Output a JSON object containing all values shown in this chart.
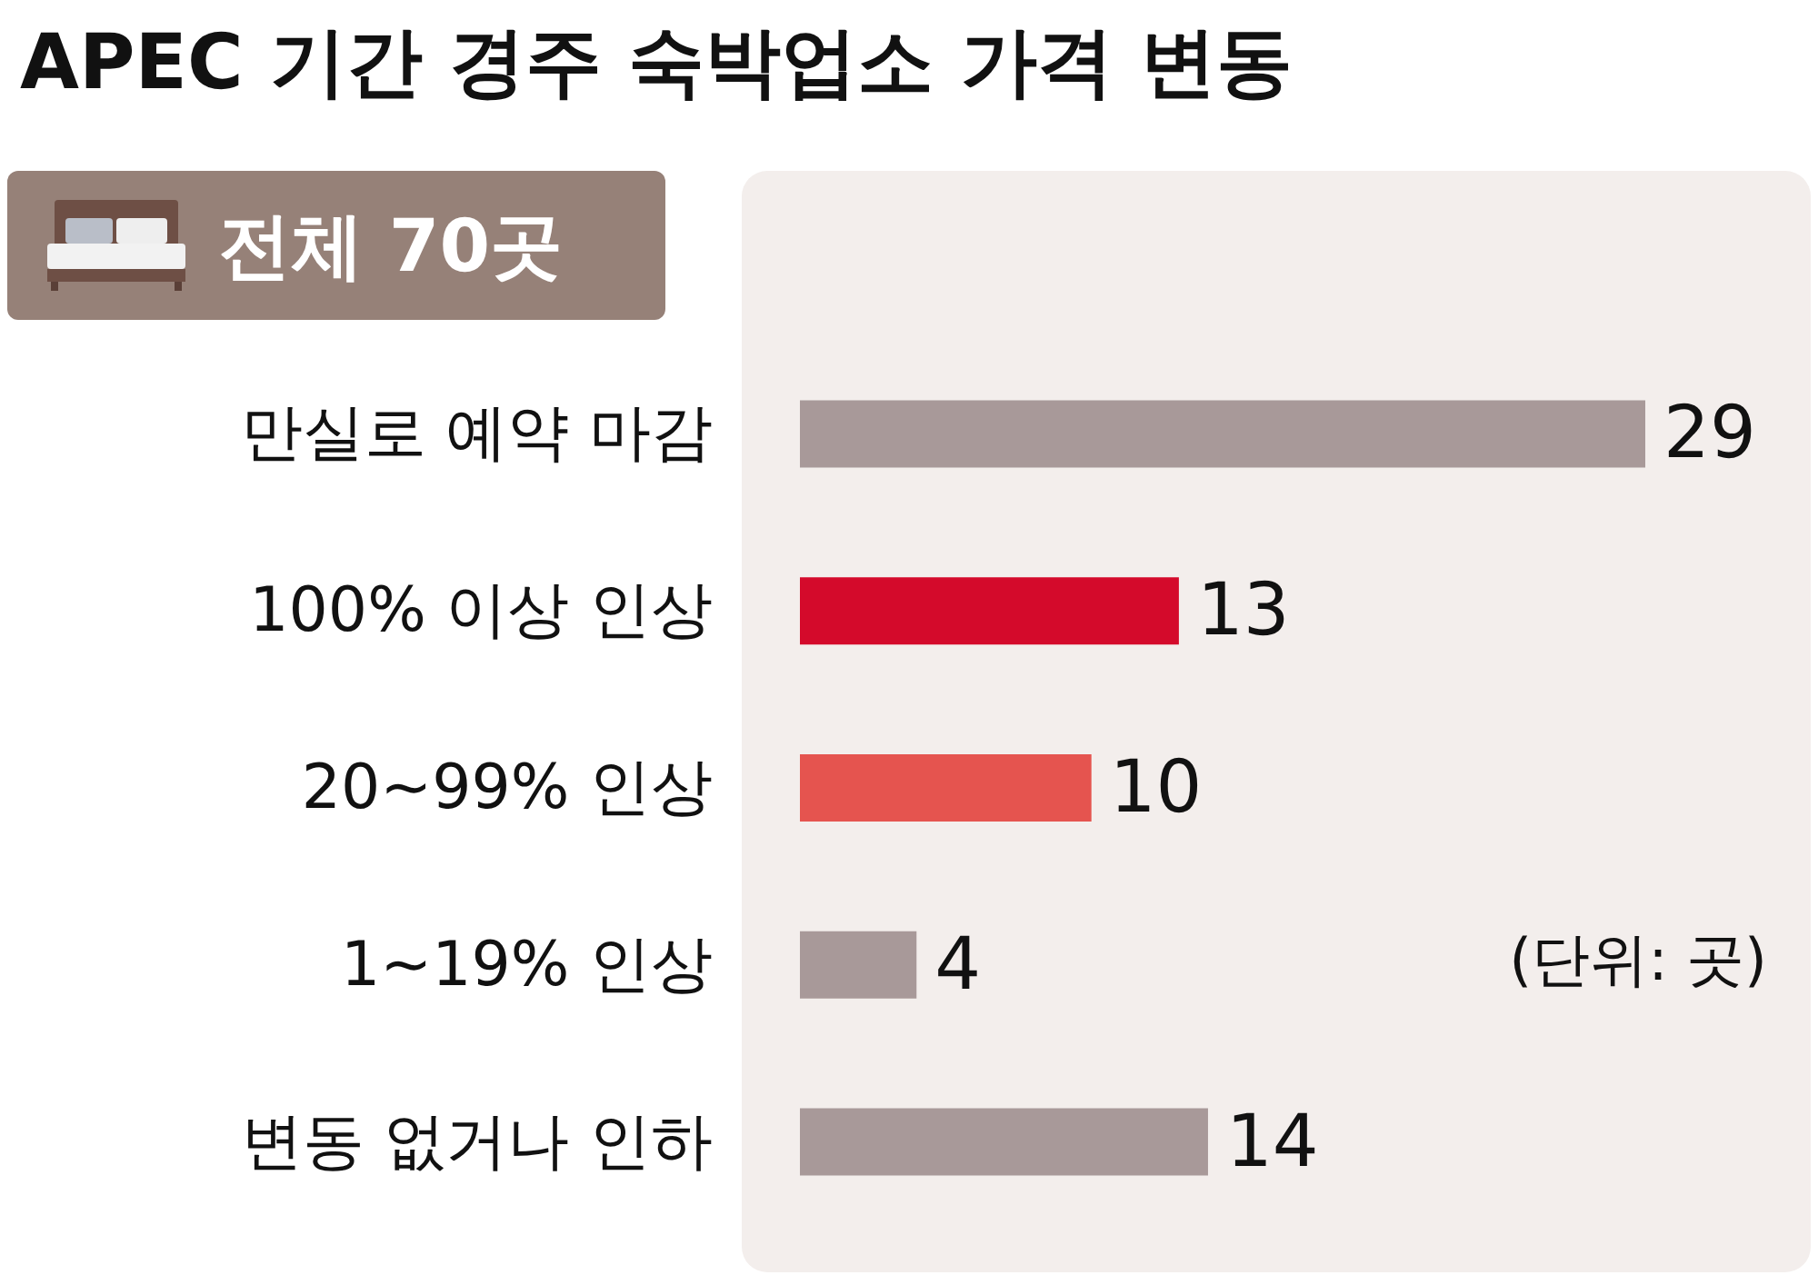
{
  "chart_data": {
    "type": "bar",
    "orientation": "horizontal",
    "title": "APEC 기간 경주 숙박업소 가격 변동",
    "annotations": [
      "전체 70곳",
      "(단위: 곳)"
    ],
    "categories": [
      "만실로 예약 마감",
      "100% 이상 인상",
      "20~99% 인상",
      "1~19% 인상",
      "변동 없거나 인하"
    ],
    "values": [
      29,
      13,
      10,
      4,
      14
    ],
    "colors": [
      "#a89999",
      "#d40a2b",
      "#e5544f",
      "#a89999",
      "#a89999"
    ],
    "data_labels": true
  }
}
